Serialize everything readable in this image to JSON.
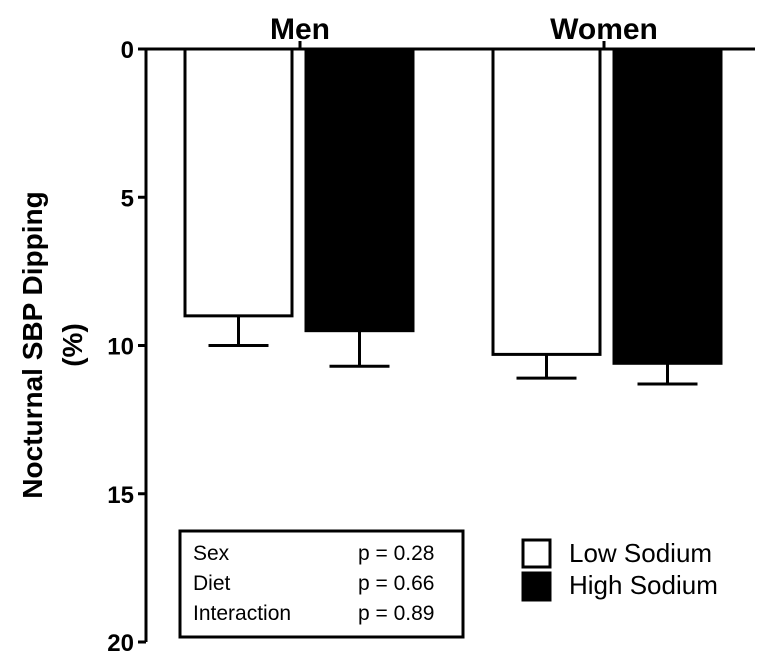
{
  "chart_data": {
    "type": "bar",
    "categories": [
      "Men",
      "Women"
    ],
    "series": [
      {
        "name": "Low Sodium",
        "color": "#ffffff",
        "values": [
          9.0,
          10.3
        ],
        "errors": [
          1.0,
          0.8
        ]
      },
      {
        "name": "High Sodium",
        "color": "#000000",
        "values": [
          9.5,
          10.6
        ],
        "errors": [
          1.2,
          0.7
        ]
      }
    ],
    "ylabel_lines": [
      "Nocturnal SBP Dipping",
      "(%)"
    ],
    "xlabel": "",
    "ylim": [
      0,
      20
    ],
    "y_inverted": true,
    "y_ticks": [
      "0",
      "5",
      "10",
      "15",
      "20"
    ],
    "x_axis_position": "top",
    "stats_box": [
      {
        "label": "Sex",
        "value": "p = 0.28"
      },
      {
        "label": "Diet",
        "value": "p = 0.66"
      },
      {
        "label": "Interaction",
        "value": "p = 0.89"
      }
    ],
    "legend_position": "bottom-right",
    "grid": false
  }
}
